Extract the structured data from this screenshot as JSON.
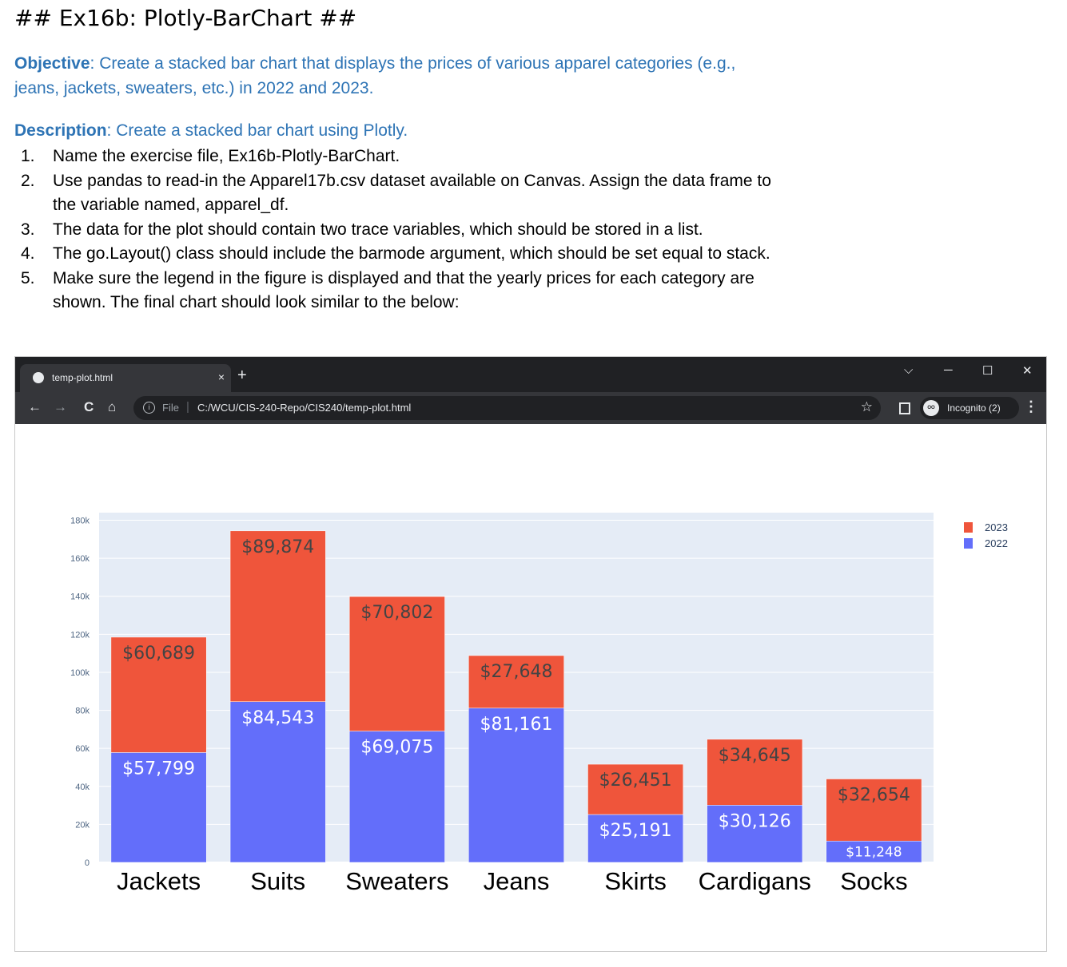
{
  "doc": {
    "heading": "## Ex16b: Plotly-BarChart ##",
    "objective_label": "Objective",
    "objective_text": ": Create a stacked bar chart that displays the prices of various apparel categories (e.g., jeans, jackets, sweaters, etc.) in 2022 and 2023.",
    "description_label": "Description",
    "description_text": ": Create a stacked bar chart using Plotly.",
    "steps": [
      {
        "num": "1.",
        "text": "Name the exercise file, Ex16b-Plotly-BarChart."
      },
      {
        "num": "2.",
        "text": "Use pandas to read-in the Apparel17b.csv dataset available on Canvas. Assign the data frame to the variable named, apparel_df."
      },
      {
        "num": "3.",
        "text": "The data for the plot should contain two trace variables, which should be stored in a list."
      },
      {
        "num": "4.",
        "text": "The go.Layout() class should include the barmode argument, which should be set equal to stack."
      },
      {
        "num": "5.",
        "text": "Make sure the legend in the figure is displayed and that the yearly prices for each category are shown. The final chart should look similar to the below:"
      }
    ]
  },
  "browser": {
    "tab_title": "temp-plot.html",
    "tab_close": "×",
    "new_tab": "+",
    "win_dropdown": "⌵",
    "win_minimize": "─",
    "win_maximize": "☐",
    "win_close": "✕",
    "back": "←",
    "forward": "→",
    "reload": "C",
    "home": "⌂",
    "info": "i",
    "file_label": "File",
    "separator": "|",
    "url": "C:/WCU/CIS-240-Repo/CIS240/temp-plot.html",
    "star": "☆",
    "incognito_icon": "ᴼᴼ",
    "incognito_label": "Incognito (2)",
    "menu": "⋮"
  },
  "chart_data": {
    "type": "bar",
    "barmode": "stack",
    "categories": [
      "Jackets",
      "Suits",
      "Sweaters",
      "Jeans",
      "Skirts",
      "Cardigans",
      "Socks"
    ],
    "series": [
      {
        "name": "2022",
        "color": "#636efa",
        "values": [
          57799,
          84543,
          69075,
          81161,
          25191,
          30126,
          11248
        ],
        "labels": [
          "$57,799",
          "$84,543",
          "$69,075",
          "$81,161",
          "$25,191",
          "$30,126",
          "$11,248"
        ]
      },
      {
        "name": "2023",
        "color": "#ef553b",
        "values": [
          60689,
          89874,
          70802,
          27648,
          26451,
          34645,
          32654
        ],
        "labels": [
          "$60,689",
          "$89,874",
          "$70,802",
          "$27,648",
          "$26,451",
          "$34,645",
          "$32,654"
        ]
      }
    ],
    "yticks": [
      0,
      20000,
      40000,
      60000,
      80000,
      100000,
      120000,
      140000,
      160000,
      180000
    ],
    "ytick_labels": [
      "0",
      "20k",
      "40k",
      "60k",
      "80k",
      "100k",
      "120k",
      "140k",
      "160k",
      "180k"
    ],
    "ylim": [
      0,
      184000
    ],
    "legend_order": [
      "2023",
      "2022"
    ],
    "legend_placement": "top-right",
    "grid": true,
    "plot_bg": "#e5ecf6"
  }
}
